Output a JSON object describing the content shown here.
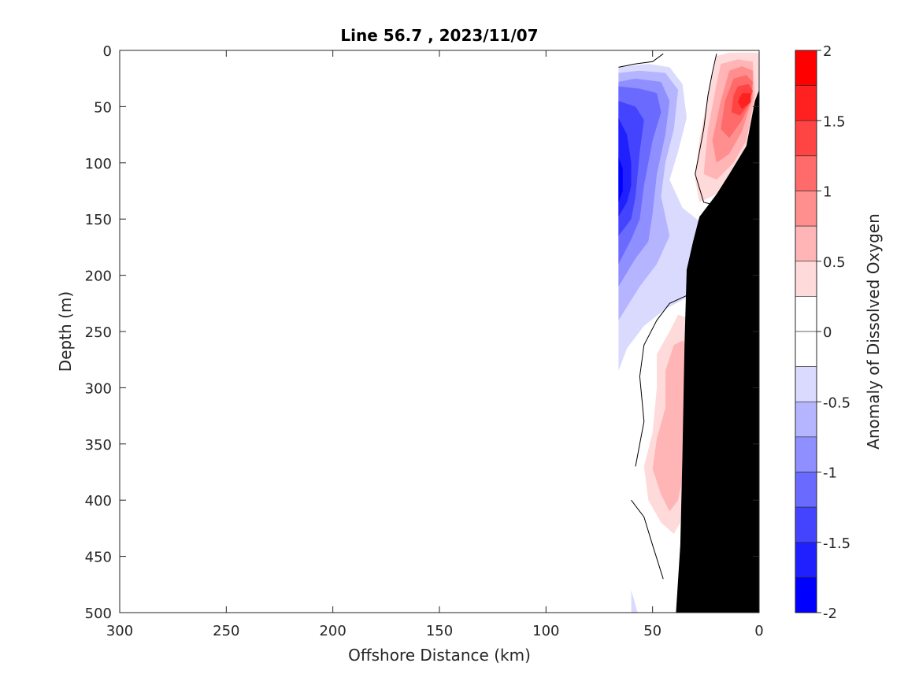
{
  "chart_data": {
    "type": "contour",
    "title": "Line 56.7 , 2023/11/07",
    "xlabel": "Offshore Distance (km)",
    "ylabel": "Depth (m)",
    "xlim": [
      300,
      0
    ],
    "ylim": [
      500,
      0
    ],
    "x_reversed": true,
    "y_reversed": true,
    "xticks": [
      300,
      250,
      200,
      150,
      100,
      50,
      0
    ],
    "yticks": [
      0,
      50,
      100,
      150,
      200,
      250,
      300,
      350,
      400,
      450,
      500
    ],
    "grid": false,
    "colorbar": {
      "label": "Anomaly of Dissolved Oxygen",
      "range": [
        -2,
        2
      ],
      "ticks": [
        2,
        1.5,
        1,
        0.5,
        0,
        -0.5,
        -1,
        -1.5,
        -2
      ],
      "tick_labels": [
        "2",
        "1.5",
        "1",
        "0.5",
        "0",
        "-0.5",
        "-1",
        "-1.5",
        "-2"
      ],
      "levels": [
        {
          "from": 1.75,
          "to": 2.0,
          "color": "#ff0000"
        },
        {
          "from": 1.5,
          "to": 1.75,
          "color": "#ff2020"
        },
        {
          "from": 1.25,
          "to": 1.5,
          "color": "#ff4444"
        },
        {
          "from": 1.0,
          "to": 1.25,
          "color": "#ff6a6a"
        },
        {
          "from": 0.75,
          "to": 1.0,
          "color": "#ff8f8f"
        },
        {
          "from": 0.5,
          "to": 0.75,
          "color": "#ffb5b5"
        },
        {
          "from": 0.25,
          "to": 0.5,
          "color": "#ffdada"
        },
        {
          "from": 0.0,
          "to": 0.25,
          "color": "#ffffff"
        },
        {
          "from": -0.25,
          "to": 0.0,
          "color": "#ffffff"
        },
        {
          "from": -0.5,
          "to": -0.25,
          "color": "#dadaff"
        },
        {
          "from": -0.75,
          "to": -0.5,
          "color": "#b5b5ff"
        },
        {
          "from": -1.0,
          "to": -0.75,
          "color": "#8f8fff"
        },
        {
          "from": -1.25,
          "to": -1.0,
          "color": "#6a6aff"
        },
        {
          "from": -1.5,
          "to": -1.25,
          "color": "#4444ff"
        },
        {
          "from": -1.75,
          "to": -1.5,
          "color": "#2020ff"
        },
        {
          "from": -2.0,
          "to": -1.75,
          "color": "#0000ff"
        }
      ]
    },
    "bathymetry": {
      "color": "#000000",
      "points": [
        [
          0,
          35
        ],
        [
          2,
          45
        ],
        [
          6,
          85
        ],
        [
          14,
          110
        ],
        [
          20,
          128
        ],
        [
          28,
          148
        ],
        [
          31,
          170
        ],
        [
          34,
          195
        ],
        [
          35,
          260
        ],
        [
          36,
          360
        ],
        [
          37,
          440
        ],
        [
          39,
          500
        ],
        [
          0,
          500
        ]
      ]
    },
    "anomaly_regions": [
      {
        "level": -0.375,
        "points": [
          [
            66,
            15
          ],
          [
            52,
            12
          ],
          [
            42,
            15
          ],
          [
            36,
            30
          ],
          [
            34,
            60
          ],
          [
            38,
            90
          ],
          [
            42,
            115
          ],
          [
            36,
            140
          ],
          [
            28,
            152
          ],
          [
            20,
            162
          ],
          [
            20,
            200
          ],
          [
            34,
            220
          ],
          [
            44,
            230
          ],
          [
            54,
            245
          ],
          [
            62,
            265
          ],
          [
            66,
            285
          ]
        ]
      },
      {
        "level": -0.625,
        "points": [
          [
            66,
            20
          ],
          [
            56,
            18
          ],
          [
            44,
            20
          ],
          [
            38,
            35
          ],
          [
            40,
            70
          ],
          [
            44,
            100
          ],
          [
            46,
            130
          ],
          [
            42,
            165
          ],
          [
            48,
            190
          ],
          [
            56,
            210
          ],
          [
            66,
            240
          ]
        ]
      },
      {
        "level": -0.875,
        "points": [
          [
            66,
            28
          ],
          [
            58,
            25
          ],
          [
            46,
            28
          ],
          [
            42,
            45
          ],
          [
            44,
            75
          ],
          [
            48,
            110
          ],
          [
            50,
            145
          ],
          [
            52,
            170
          ],
          [
            58,
            185
          ],
          [
            66,
            210
          ]
        ]
      },
      {
        "level": -1.125,
        "points": [
          [
            66,
            32
          ],
          [
            56,
            34
          ],
          [
            48,
            38
          ],
          [
            46,
            55
          ],
          [
            50,
            80
          ],
          [
            54,
            120
          ],
          [
            56,
            150
          ],
          [
            60,
            168
          ],
          [
            66,
            190
          ]
        ]
      },
      {
        "level": -1.375,
        "points": [
          [
            66,
            45
          ],
          [
            58,
            50
          ],
          [
            54,
            62
          ],
          [
            56,
            90
          ],
          [
            58,
            130
          ],
          [
            60,
            150
          ],
          [
            66,
            165
          ]
        ]
      },
      {
        "level": -1.625,
        "points": [
          [
            66,
            60
          ],
          [
            62,
            75
          ],
          [
            60,
            100
          ],
          [
            60,
            120
          ],
          [
            62,
            135
          ],
          [
            66,
            148
          ]
        ]
      },
      {
        "level": -1.875,
        "points": [
          [
            66,
            95
          ],
          [
            64,
            105
          ],
          [
            64,
            125
          ],
          [
            66,
            135
          ]
        ]
      },
      {
        "level": -0.375,
        "points": [
          [
            60,
            480
          ],
          [
            57,
            500
          ],
          [
            60,
            500
          ]
        ]
      },
      {
        "level": 0.375,
        "points": [
          [
            20,
            5
          ],
          [
            14,
            2
          ],
          [
            6,
            2
          ],
          [
            0,
            2
          ],
          [
            0,
            35
          ],
          [
            2,
            45
          ],
          [
            6,
            85
          ],
          [
            14,
            110
          ],
          [
            20,
            128
          ],
          [
            28,
            135
          ],
          [
            30,
            115
          ],
          [
            28,
            80
          ],
          [
            24,
            40
          ]
        ]
      },
      {
        "level": 0.625,
        "points": [
          [
            18,
            12
          ],
          [
            10,
            8
          ],
          [
            3,
            10
          ],
          [
            2,
            40
          ],
          [
            6,
            80
          ],
          [
            12,
            100
          ],
          [
            20,
            115
          ],
          [
            26,
            110
          ],
          [
            24,
            70
          ],
          [
            20,
            30
          ]
        ]
      },
      {
        "level": 0.875,
        "points": [
          [
            14,
            18
          ],
          [
            8,
            14
          ],
          [
            3,
            18
          ],
          [
            3,
            42
          ],
          [
            8,
            72
          ],
          [
            14,
            92
          ],
          [
            20,
            100
          ],
          [
            22,
            80
          ],
          [
            18,
            45
          ]
        ]
      },
      {
        "level": 1.125,
        "points": [
          [
            12,
            25
          ],
          [
            6,
            22
          ],
          [
            3,
            28
          ],
          [
            4,
            46
          ],
          [
            8,
            62
          ],
          [
            14,
            78
          ],
          [
            18,
            70
          ],
          [
            16,
            45
          ]
        ]
      },
      {
        "level": 1.375,
        "points": [
          [
            10,
            32
          ],
          [
            5,
            30
          ],
          [
            3,
            36
          ],
          [
            5,
            48
          ],
          [
            9,
            58
          ],
          [
            13,
            55
          ],
          [
            12,
            40
          ]
        ]
      },
      {
        "level": 1.625,
        "points": [
          [
            8,
            38
          ],
          [
            4,
            38
          ],
          [
            4,
            46
          ],
          [
            8,
            52
          ],
          [
            10,
            46
          ]
        ]
      },
      {
        "level": 0.375,
        "points": [
          [
            38,
            235
          ],
          [
            30,
            240
          ],
          [
            34,
            260
          ],
          [
            34,
            300
          ],
          [
            36,
            350
          ],
          [
            36,
            400
          ],
          [
            37,
            420
          ],
          [
            40,
            430
          ],
          [
            46,
            420
          ],
          [
            52,
            400
          ],
          [
            54,
            370
          ],
          [
            50,
            340
          ],
          [
            48,
            300
          ],
          [
            48,
            270
          ],
          [
            42,
            250
          ]
        ]
      },
      {
        "level": 0.625,
        "points": [
          [
            30,
            270
          ],
          [
            34,
            300
          ],
          [
            34,
            340
          ],
          [
            36,
            380
          ],
          [
            38,
            400
          ],
          [
            42,
            410
          ],
          [
            46,
            395
          ],
          [
            50,
            372
          ],
          [
            48,
            345
          ],
          [
            44,
            318
          ],
          [
            44,
            285
          ],
          [
            40,
            262
          ],
          [
            36,
            258
          ]
        ]
      }
    ],
    "zero_contours": [
      [
        [
          66,
          15
        ],
        [
          58,
          12
        ],
        [
          50,
          10
        ],
        [
          45,
          3
        ]
      ],
      [
        [
          20,
          3
        ],
        [
          22,
          20
        ],
        [
          24,
          40
        ],
        [
          26,
          70
        ],
        [
          30,
          110
        ],
        [
          26,
          135
        ],
        [
          20,
          138
        ]
      ],
      [
        [
          34,
          218
        ],
        [
          42,
          225
        ],
        [
          48,
          240
        ],
        [
          54,
          262
        ],
        [
          56,
          290
        ],
        [
          54,
          330
        ],
        [
          58,
          370
        ]
      ],
      [
        [
          60,
          400
        ],
        [
          54,
          415
        ],
        [
          50,
          440
        ],
        [
          45,
          470
        ]
      ]
    ]
  }
}
